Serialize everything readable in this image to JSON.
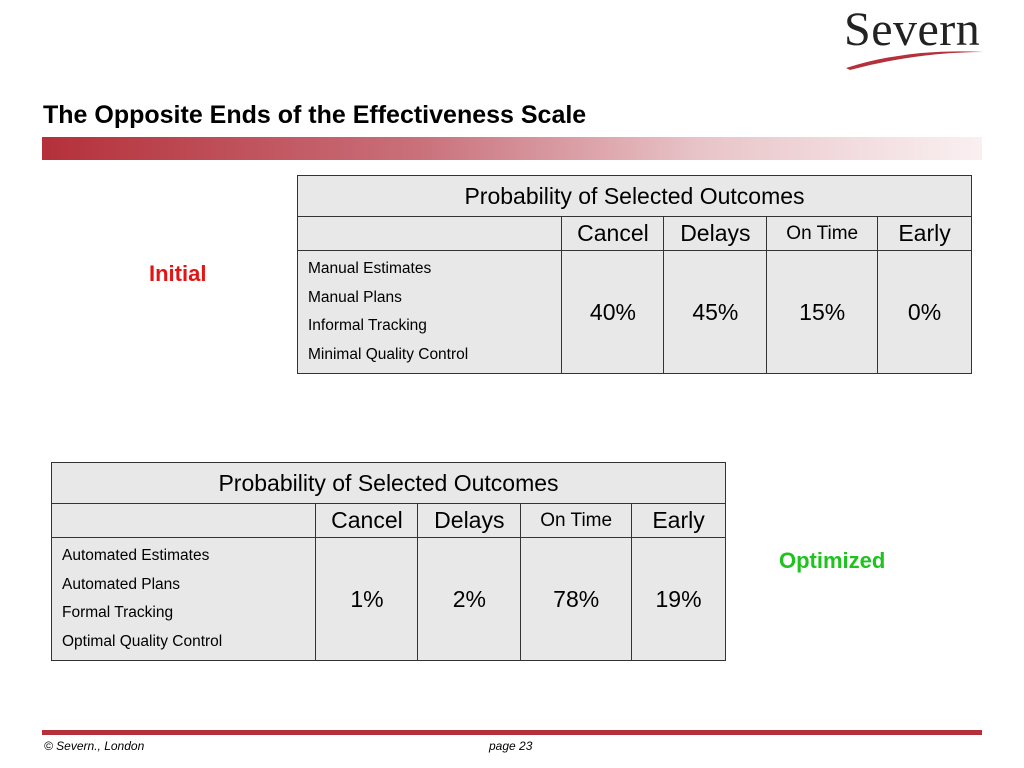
{
  "logo": {
    "text": "Severn"
  },
  "slide": {
    "title": "The Opposite Ends of the Effectiveness Scale",
    "accent_color": "#b4303a"
  },
  "tables": [
    {
      "stage": "Initial",
      "stage_color": "#e41414",
      "header": "Probability of Selected Outcomes",
      "columns": [
        "Cancel",
        "Delays",
        "On Time",
        "Early"
      ],
      "factors": [
        "Manual Estimates",
        "Manual Plans",
        "Informal Tracking",
        "Minimal Quality Control"
      ],
      "values": [
        "40%",
        "45%",
        "15%",
        "0%"
      ]
    },
    {
      "stage": "Optimized",
      "stage_color": "#1ec31e",
      "header": "Probability of Selected Outcomes",
      "columns": [
        "Cancel",
        "Delays",
        "On Time",
        "Early"
      ],
      "factors": [
        "Automated Estimates",
        "Automated Plans",
        "Formal Tracking",
        "Optimal Quality Control"
      ],
      "values": [
        "1%",
        "2%",
        "78%",
        "19%"
      ]
    }
  ],
  "footer": {
    "copyright": "© Severn., London",
    "page": "page 23"
  }
}
